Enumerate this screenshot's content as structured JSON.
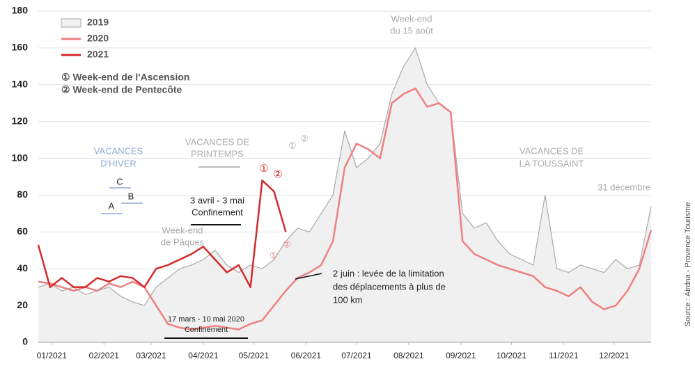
{
  "chart_data": {
    "type": "line",
    "x": [
      1,
      8,
      15,
      22,
      29,
      36,
      43,
      50,
      57,
      64,
      71,
      78,
      85,
      92,
      99,
      106,
      113,
      120,
      127,
      134,
      141,
      148,
      155,
      162,
      169,
      176,
      183,
      190,
      197,
      204,
      211,
      218,
      225,
      232,
      239,
      246,
      253,
      260,
      267,
      274,
      281,
      288,
      295,
      302,
      309,
      316,
      323,
      330,
      337,
      344,
      351,
      358,
      365
    ],
    "series": [
      {
        "name": "2019",
        "color": "#a8a8a8",
        "fill": "#f0f0f0",
        "area": true,
        "values": [
          30,
          32,
          28,
          30,
          26,
          28,
          30,
          25,
          22,
          20,
          30,
          35,
          40,
          42,
          45,
          50,
          42,
          38,
          42,
          40,
          45,
          55,
          62,
          60,
          70,
          80,
          115,
          95,
          100,
          108,
          135,
          150,
          160,
          140,
          130,
          125,
          70,
          62,
          65,
          55,
          48,
          45,
          42,
          80,
          40,
          38,
          42,
          40,
          38,
          45,
          40,
          42,
          74
        ]
      },
      {
        "name": "2020",
        "color": "#ef7f7f",
        "values": [
          33,
          32,
          30,
          28,
          30,
          28,
          32,
          30,
          33,
          30,
          20,
          10,
          8,
          7,
          8,
          9,
          8,
          7,
          10,
          12,
          20,
          28,
          35,
          38,
          42,
          55,
          95,
          108,
          105,
          100,
          130,
          135,
          138,
          128,
          130,
          125,
          55,
          48,
          45,
          42,
          40,
          38,
          36,
          30,
          28,
          25,
          30,
          22,
          18,
          20,
          28,
          40,
          61
        ]
      },
      {
        "name": "2021",
        "color": "#d42a2a",
        "values": [
          53,
          30,
          35,
          30,
          30,
          35,
          33,
          36,
          35,
          30,
          40,
          42,
          45,
          48,
          52,
          45,
          38,
          42,
          30,
          88,
          82,
          60,
          null,
          null,
          null,
          null,
          null,
          null,
          null,
          null,
          null,
          null,
          null,
          null,
          null,
          null,
          null,
          null,
          null,
          null,
          null,
          null,
          null,
          null,
          null,
          null,
          null,
          null,
          null,
          null,
          null,
          null,
          null
        ]
      }
    ],
    "xlim": [
      1,
      365
    ],
    "xticks": [
      {
        "value": 9,
        "label": "01/2021"
      },
      {
        "value": 40,
        "label": "02/2021"
      },
      {
        "value": 68,
        "label": "03/2021"
      },
      {
        "value": 99,
        "label": "04/2021"
      },
      {
        "value": 129,
        "label": "05/2021"
      },
      {
        "value": 160,
        "label": "06/2021"
      },
      {
        "value": 190,
        "label": "07/2021"
      },
      {
        "value": 221,
        "label": "08/2021"
      },
      {
        "value": 252,
        "label": "09/2021"
      },
      {
        "value": 282,
        "label": "10/2021"
      },
      {
        "value": 313,
        "label": "11/2021"
      },
      {
        "value": 343,
        "label": "12/2021"
      }
    ],
    "ylim": [
      0,
      180
    ],
    "yticks": [
      0,
      20,
      40,
      60,
      80,
      100,
      120,
      140,
      160,
      180
    ],
    "grid": true,
    "legend_notes": [
      "① Week-end de l'Ascension",
      "② Week-end de Pentecôte"
    ],
    "annotations": {
      "aout": [
        "Week-end",
        "du 15 août"
      ],
      "hiver": [
        "VACANCES",
        "D'HIVER"
      ],
      "printemps": [
        "VACANCES DE",
        "PRINTEMPS"
      ],
      "toussaint": [
        "VACANCES DE",
        "LA TOUSSAINT"
      ],
      "decembre": "31 décembre",
      "conf2021": [
        "3 avril - 3 mai",
        "Confinement"
      ],
      "paques": [
        "Week-end",
        "de Pâques"
      ],
      "conf2020": [
        "17 mars - 10 mai 2020",
        "Confinement"
      ],
      "juin": [
        "2 juin : levée de la limitation",
        "des déplacements à plus de",
        "100 km"
      ],
      "a": "A",
      "b": "B",
      "c": "C",
      "m1": "①",
      "m2": "②",
      "g1": "①",
      "g2": "②",
      "p1": "①",
      "p2": "②"
    },
    "source": "Source : Airdna - Provence Tourisme"
  }
}
